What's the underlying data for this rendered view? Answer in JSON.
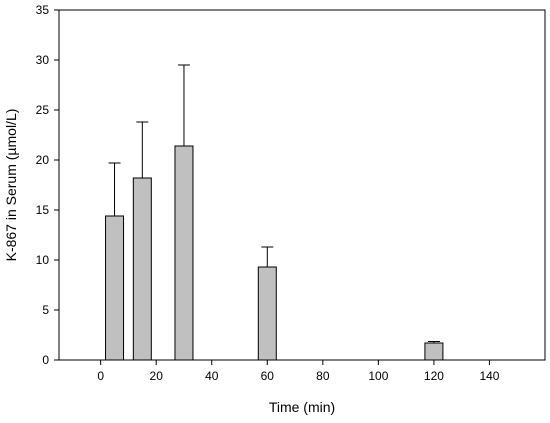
{
  "chart_data": {
    "type": "bar",
    "title": "",
    "xlabel": "Time (min)",
    "ylabel": "K-867 in Serum (µmol/L)",
    "xlim": [
      -15,
      160
    ],
    "ylim": [
      0,
      35
    ],
    "xticks": [
      0,
      20,
      40,
      60,
      80,
      100,
      120,
      140
    ],
    "yticks": [
      0,
      5,
      10,
      15,
      20,
      25,
      30,
      35
    ],
    "grid": false,
    "legend": "none",
    "bar_color": "#c0c0c0",
    "x": [
      5,
      15,
      30,
      60,
      120
    ],
    "values": [
      14.4,
      18.2,
      21.4,
      9.3,
      1.7
    ],
    "error_upper": [
      5.3,
      5.6,
      8.1,
      2.0,
      0.15
    ]
  }
}
